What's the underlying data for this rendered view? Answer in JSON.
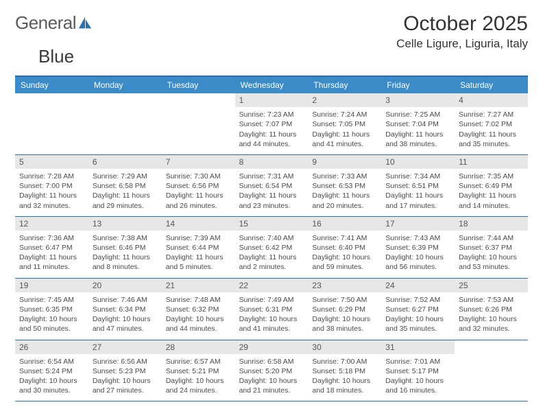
{
  "logo": {
    "text_a": "General",
    "text_b": "Blue"
  },
  "title": "October 2025",
  "location": "Celle Ligure, Liguria, Italy",
  "colors": {
    "header_bg": "#3b8bc8",
    "header_border": "#2b6fae",
    "daynum_bg": "#e7e7e7",
    "text": "#4a4a4a",
    "logo_accent": "#2b6fae"
  },
  "day_names": [
    "Sunday",
    "Monday",
    "Tuesday",
    "Wednesday",
    "Thursday",
    "Friday",
    "Saturday"
  ],
  "weeks": [
    [
      {
        "blank": true
      },
      {
        "blank": true
      },
      {
        "blank": true
      },
      {
        "n": "1",
        "sr": "7:23 AM",
        "ss": "7:07 PM",
        "dl": "11 hours and 44 minutes."
      },
      {
        "n": "2",
        "sr": "7:24 AM",
        "ss": "7:05 PM",
        "dl": "11 hours and 41 minutes."
      },
      {
        "n": "3",
        "sr": "7:25 AM",
        "ss": "7:04 PM",
        "dl": "11 hours and 38 minutes."
      },
      {
        "n": "4",
        "sr": "7:27 AM",
        "ss": "7:02 PM",
        "dl": "11 hours and 35 minutes."
      }
    ],
    [
      {
        "n": "5",
        "sr": "7:28 AM",
        "ss": "7:00 PM",
        "dl": "11 hours and 32 minutes."
      },
      {
        "n": "6",
        "sr": "7:29 AM",
        "ss": "6:58 PM",
        "dl": "11 hours and 29 minutes."
      },
      {
        "n": "7",
        "sr": "7:30 AM",
        "ss": "6:56 PM",
        "dl": "11 hours and 26 minutes."
      },
      {
        "n": "8",
        "sr": "7:31 AM",
        "ss": "6:54 PM",
        "dl": "11 hours and 23 minutes."
      },
      {
        "n": "9",
        "sr": "7:33 AM",
        "ss": "6:53 PM",
        "dl": "11 hours and 20 minutes."
      },
      {
        "n": "10",
        "sr": "7:34 AM",
        "ss": "6:51 PM",
        "dl": "11 hours and 17 minutes."
      },
      {
        "n": "11",
        "sr": "7:35 AM",
        "ss": "6:49 PM",
        "dl": "11 hours and 14 minutes."
      }
    ],
    [
      {
        "n": "12",
        "sr": "7:36 AM",
        "ss": "6:47 PM",
        "dl": "11 hours and 11 minutes."
      },
      {
        "n": "13",
        "sr": "7:38 AM",
        "ss": "6:46 PM",
        "dl": "11 hours and 8 minutes."
      },
      {
        "n": "14",
        "sr": "7:39 AM",
        "ss": "6:44 PM",
        "dl": "11 hours and 5 minutes."
      },
      {
        "n": "15",
        "sr": "7:40 AM",
        "ss": "6:42 PM",
        "dl": "11 hours and 2 minutes."
      },
      {
        "n": "16",
        "sr": "7:41 AM",
        "ss": "6:40 PM",
        "dl": "10 hours and 59 minutes."
      },
      {
        "n": "17",
        "sr": "7:43 AM",
        "ss": "6:39 PM",
        "dl": "10 hours and 56 minutes."
      },
      {
        "n": "18",
        "sr": "7:44 AM",
        "ss": "6:37 PM",
        "dl": "10 hours and 53 minutes."
      }
    ],
    [
      {
        "n": "19",
        "sr": "7:45 AM",
        "ss": "6:35 PM",
        "dl": "10 hours and 50 minutes."
      },
      {
        "n": "20",
        "sr": "7:46 AM",
        "ss": "6:34 PM",
        "dl": "10 hours and 47 minutes."
      },
      {
        "n": "21",
        "sr": "7:48 AM",
        "ss": "6:32 PM",
        "dl": "10 hours and 44 minutes."
      },
      {
        "n": "22",
        "sr": "7:49 AM",
        "ss": "6:31 PM",
        "dl": "10 hours and 41 minutes."
      },
      {
        "n": "23",
        "sr": "7:50 AM",
        "ss": "6:29 PM",
        "dl": "10 hours and 38 minutes."
      },
      {
        "n": "24",
        "sr": "7:52 AM",
        "ss": "6:27 PM",
        "dl": "10 hours and 35 minutes."
      },
      {
        "n": "25",
        "sr": "7:53 AM",
        "ss": "6:26 PM",
        "dl": "10 hours and 32 minutes."
      }
    ],
    [
      {
        "n": "26",
        "sr": "6:54 AM",
        "ss": "5:24 PM",
        "dl": "10 hours and 30 minutes."
      },
      {
        "n": "27",
        "sr": "6:56 AM",
        "ss": "5:23 PM",
        "dl": "10 hours and 27 minutes."
      },
      {
        "n": "28",
        "sr": "6:57 AM",
        "ss": "5:21 PM",
        "dl": "10 hours and 24 minutes."
      },
      {
        "n": "29",
        "sr": "6:58 AM",
        "ss": "5:20 PM",
        "dl": "10 hours and 21 minutes."
      },
      {
        "n": "30",
        "sr": "7:00 AM",
        "ss": "5:18 PM",
        "dl": "10 hours and 18 minutes."
      },
      {
        "n": "31",
        "sr": "7:01 AM",
        "ss": "5:17 PM",
        "dl": "10 hours and 16 minutes."
      },
      {
        "blank": true
      }
    ]
  ],
  "labels": {
    "sunrise": "Sunrise: ",
    "sunset": "Sunset: ",
    "daylight": "Daylight: "
  }
}
